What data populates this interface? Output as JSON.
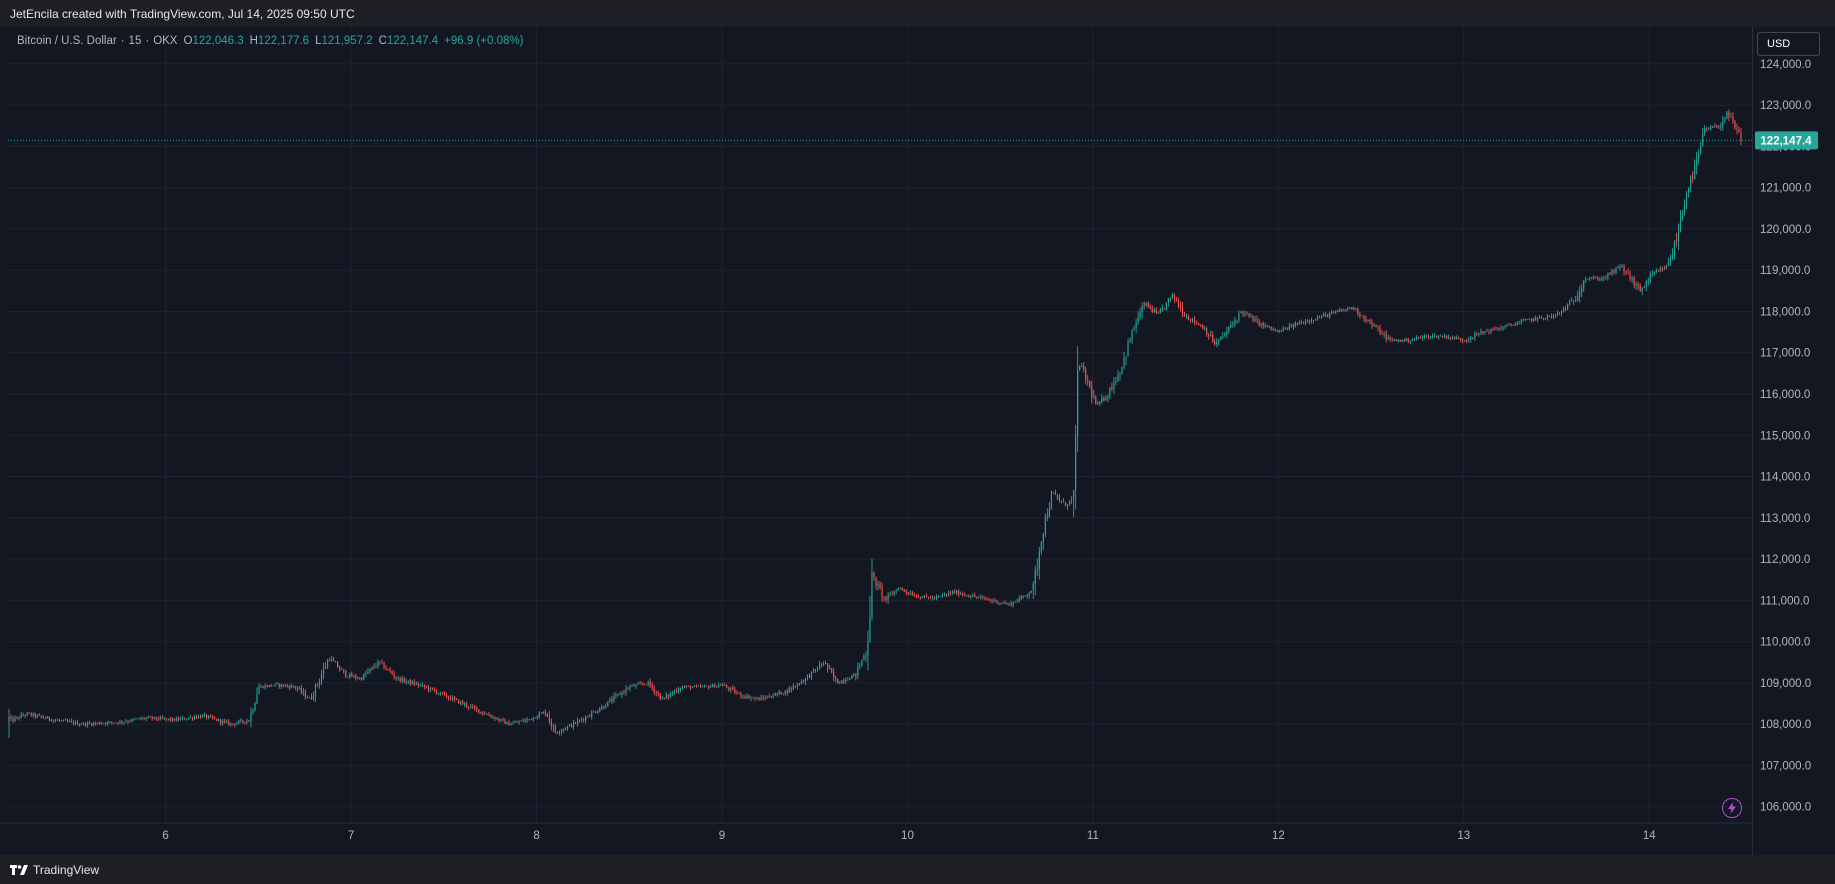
{
  "header": {
    "credit": "JetEncila created with TradingView.com, Jul 14, 2025 09:50 UTC"
  },
  "legend": {
    "symbol": "Bitcoin / U.S. Dollar",
    "interval": "15",
    "exchange": "OKX",
    "open_label": "O",
    "open": "122,046.3",
    "high_label": "H",
    "high": "122,177.6",
    "low_label": "L",
    "low": "121,957.2",
    "close_label": "C",
    "close": "122,147.4",
    "change": "+96.9 (+0.08%)"
  },
  "axis": {
    "currency": "USD",
    "last_price_label": "122,147.4"
  },
  "footer": {
    "brand": "TradingView"
  },
  "colors": {
    "background": "#131722",
    "grid": "#1f2330",
    "up": "#26a69a",
    "down": "#ef5350",
    "text": "#b2b5be",
    "accent_purple": "#b84ed4"
  },
  "icons": {
    "brand_logo": "tradingview-logo-icon",
    "bolt": "lightning-bolt-icon"
  },
  "chart_data": {
    "type": "candlestick",
    "symbol": "Bitcoin / U.S. Dollar",
    "interval": "15",
    "grid": true,
    "price_axis_position": "right",
    "ylim": [
      105700,
      124700
    ],
    "yticks": [
      106000,
      107000,
      108000,
      109000,
      110000,
      111000,
      112000,
      113000,
      114000,
      115000,
      116000,
      117000,
      118000,
      119000,
      120000,
      121000,
      122000,
      123000,
      124000
    ],
    "ytick_labels": [
      "106,000.0",
      "107,000.0",
      "108,000.0",
      "109,000.0",
      "110,000.0",
      "111,000.0",
      "112,000.0",
      "113,000.0",
      "114,000.0",
      "115,000.0",
      "116,000.0",
      "117,000.0",
      "118,000.0",
      "119,000.0",
      "120,000.0",
      "121,000.0",
      "122,000.0",
      "123,000.0",
      "124,000.0"
    ],
    "xlim": [
      5.15,
      14.5
    ],
    "xticks": [
      6,
      7,
      8,
      9,
      10,
      11,
      12,
      13,
      14
    ],
    "xtick_labels": [
      "6",
      "7",
      "8",
      "9",
      "10",
      "11",
      "12",
      "13",
      "14"
    ],
    "last_price": 122147.4,
    "path": [
      [
        5.15,
        108050
      ],
      [
        5.25,
        108250
      ],
      [
        5.4,
        108100
      ],
      [
        5.55,
        108000
      ],
      [
        5.75,
        108050
      ],
      [
        5.9,
        108150
      ],
      [
        6.05,
        108100
      ],
      [
        6.2,
        108200
      ],
      [
        6.35,
        108000
      ],
      [
        6.45,
        108100
      ],
      [
        6.5,
        108900
      ],
      [
        6.6,
        108950
      ],
      [
        6.7,
        108900
      ],
      [
        6.78,
        108600
      ],
      [
        6.88,
        109600
      ],
      [
        6.97,
        109200
      ],
      [
        7.05,
        109100
      ],
      [
        7.15,
        109500
      ],
      [
        7.25,
        109100
      ],
      [
        7.4,
        108900
      ],
      [
        7.55,
        108600
      ],
      [
        7.7,
        108300
      ],
      [
        7.85,
        108000
      ],
      [
        7.95,
        108100
      ],
      [
        8.05,
        108300
      ],
      [
        8.1,
        107800
      ],
      [
        8.2,
        108000
      ],
      [
        8.35,
        108400
      ],
      [
        8.5,
        108900
      ],
      [
        8.6,
        109000
      ],
      [
        8.68,
        108600
      ],
      [
        8.78,
        108900
      ],
      [
        8.9,
        108900
      ],
      [
        9.0,
        108950
      ],
      [
        9.1,
        108700
      ],
      [
        9.2,
        108600
      ],
      [
        9.35,
        108800
      ],
      [
        9.45,
        109100
      ],
      [
        9.55,
        109500
      ],
      [
        9.62,
        109000
      ],
      [
        9.72,
        109200
      ],
      [
        9.78,
        109800
      ],
      [
        9.81,
        111600
      ],
      [
        9.88,
        111000
      ],
      [
        9.95,
        111300
      ],
      [
        10.05,
        111100
      ],
      [
        10.15,
        111050
      ],
      [
        10.25,
        111200
      ],
      [
        10.35,
        111100
      ],
      [
        10.45,
        111000
      ],
      [
        10.55,
        110900
      ],
      [
        10.63,
        111100
      ],
      [
        10.68,
        111300
      ],
      [
        10.72,
        112500
      ],
      [
        10.78,
        113600
      ],
      [
        10.85,
        113300
      ],
      [
        10.9,
        113500
      ],
      [
        10.92,
        116800
      ],
      [
        10.97,
        116300
      ],
      [
        11.02,
        115700
      ],
      [
        11.08,
        116000
      ],
      [
        11.15,
        116600
      ],
      [
        11.22,
        117600
      ],
      [
        11.28,
        118200
      ],
      [
        11.35,
        117900
      ],
      [
        11.43,
        118400
      ],
      [
        11.5,
        117900
      ],
      [
        11.6,
        117600
      ],
      [
        11.66,
        117200
      ],
      [
        11.72,
        117500
      ],
      [
        11.8,
        118000
      ],
      [
        11.9,
        117700
      ],
      [
        12.0,
        117500
      ],
      [
        12.1,
        117700
      ],
      [
        12.25,
        117900
      ],
      [
        12.4,
        118100
      ],
      [
        12.5,
        117700
      ],
      [
        12.6,
        117300
      ],
      [
        12.7,
        117300
      ],
      [
        12.8,
        117400
      ],
      [
        12.9,
        117400
      ],
      [
        13.0,
        117300
      ],
      [
        13.1,
        117500
      ],
      [
        13.2,
        117600
      ],
      [
        13.35,
        117800
      ],
      [
        13.5,
        117900
      ],
      [
        13.6,
        118300
      ],
      [
        13.65,
        118800
      ],
      [
        13.75,
        118800
      ],
      [
        13.85,
        119100
      ],
      [
        13.95,
        118500
      ],
      [
        14.02,
        118900
      ],
      [
        14.1,
        119100
      ],
      [
        14.15,
        119800
      ],
      [
        14.2,
        120900
      ],
      [
        14.25,
        121500
      ],
      [
        14.3,
        122400
      ],
      [
        14.38,
        122500
      ],
      [
        14.42,
        122800
      ],
      [
        14.5,
        122147
      ]
    ]
  }
}
